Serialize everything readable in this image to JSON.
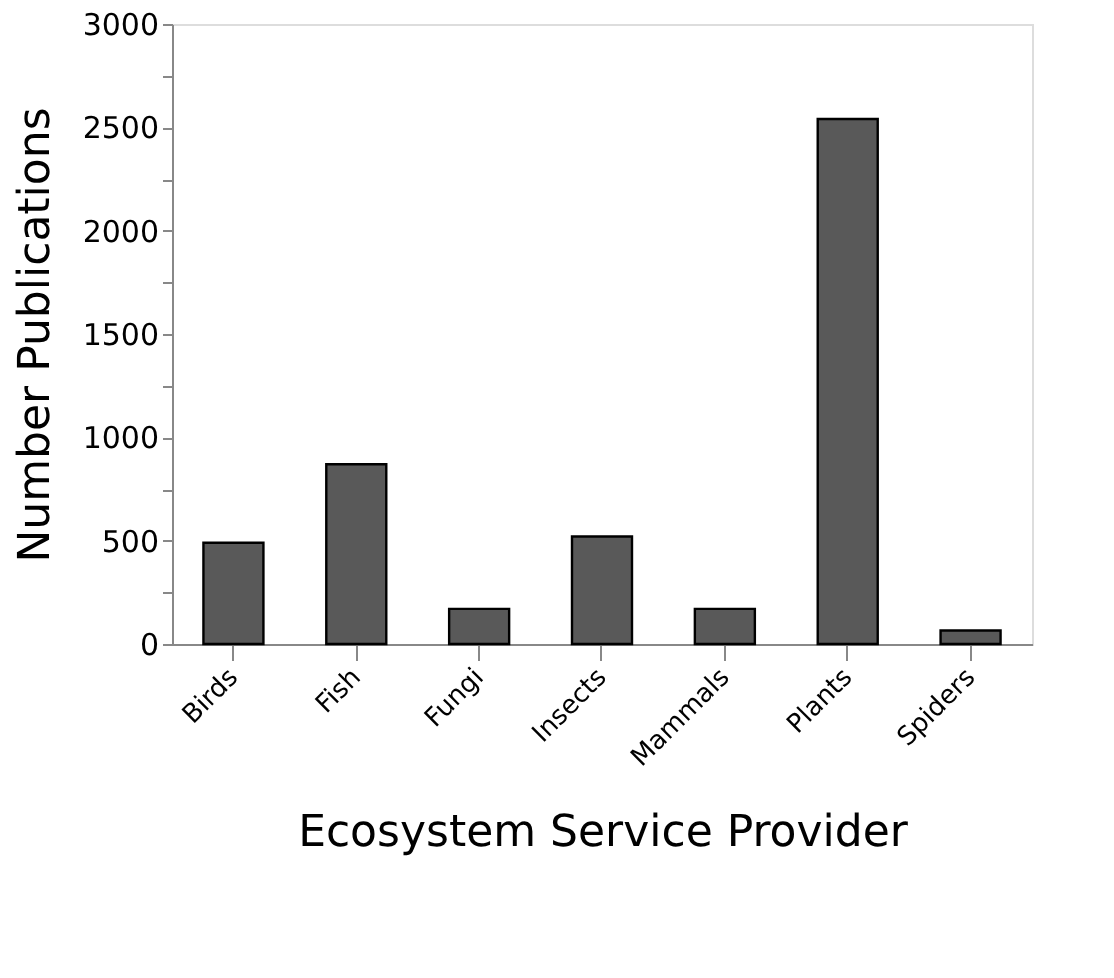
{
  "chart_data": {
    "type": "bar",
    "categories": [
      "Birds",
      "Fish",
      "Fungi",
      "Insects",
      "Mammals",
      "Plants",
      "Spiders"
    ],
    "values": [
      490,
      870,
      170,
      520,
      170,
      2540,
      65
    ],
    "color": "#595959",
    "xlabel": "Ecosystem Service Provider",
    "ylabel": "Number Publications",
    "ylim": [
      0,
      3000
    ],
    "yticks": [
      0,
      {
        "value": 250,
        "label": null
      },
      500,
      {
        "value": 750,
        "label": null
      },
      1000,
      {
        "value": 1250,
        "label": null
      },
      1500,
      {
        "value": 1750,
        "label": null
      },
      2000,
      {
        "value": 2250,
        "label": null
      },
      2500,
      {
        "value": 2750,
        "label": null
      },
      3000
    ],
    "grid": false
  }
}
